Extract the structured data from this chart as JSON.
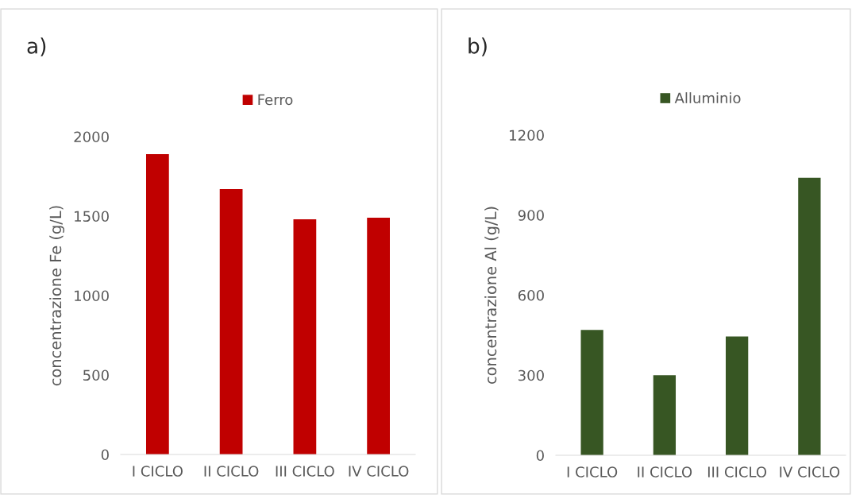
{
  "chart_data": [
    {
      "type": "bar",
      "annotations": [
        "a)"
      ],
      "ylabel": "concentrazione Fe (g/L)",
      "categories": [
        "I CICLO",
        "II CICLO",
        "III CICLO",
        "IV CICLO"
      ],
      "series": [
        {
          "name": "Ferro",
          "color": "#c00000",
          "values": [
            1890,
            1670,
            1480,
            1490
          ]
        }
      ],
      "ylim": [
        0,
        2000
      ],
      "yticks": [
        0,
        500,
        1000,
        1500,
        2000
      ],
      "grid": false,
      "legend": "top"
    },
    {
      "type": "bar",
      "annotations": [
        "b)"
      ],
      "ylabel": "concentrazione Al (g/L)",
      "categories": [
        "I CICLO",
        "II CICLO",
        "III CICLO",
        "IV CICLO"
      ],
      "series": [
        {
          "name": "Alluminio",
          "color": "#375623",
          "values": [
            470,
            300,
            445,
            1040
          ]
        }
      ],
      "ylim": [
        0,
        1200
      ],
      "yticks": [
        0,
        300,
        600,
        900,
        1200
      ],
      "grid": false,
      "legend": "top"
    }
  ]
}
